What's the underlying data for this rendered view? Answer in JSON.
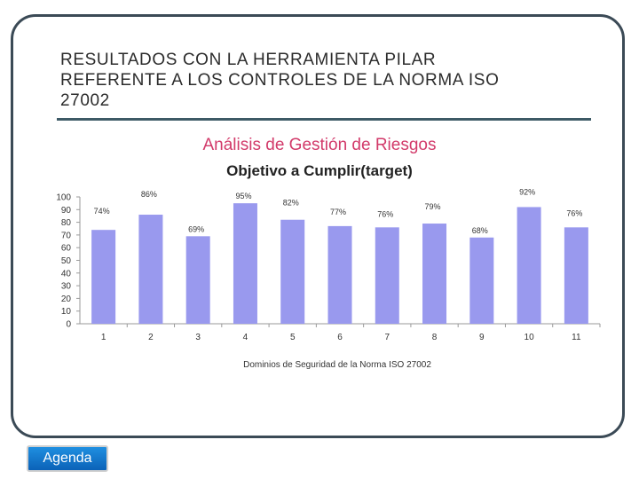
{
  "slide": {
    "title": "RESULTADOS CON LA HERRAMIENTA PILAR\nREFERENTE A LOS CONTROLES  DE LA NORMA ISO\n27002"
  },
  "chart_data": {
    "type": "bar",
    "title": "Análisis de Gestión de Riesgos",
    "subtitle": "Objetivo a Cumplir(target)",
    "xlabel": "Dominios de Seguridad de la Norma ISO 27002",
    "ylabel": "",
    "categories": [
      "1",
      "2",
      "3",
      "4",
      "5",
      "6",
      "7",
      "8",
      "9",
      "10",
      "11"
    ],
    "values": [
      74,
      86,
      69,
      95,
      82,
      77,
      76,
      79,
      68,
      92,
      76
    ],
    "data_labels": [
      "74%",
      "86%",
      "69%",
      "95%",
      "82%",
      "77%",
      "76%",
      "79%",
      "68%",
      "92%",
      "76%"
    ],
    "yticks": [
      "0",
      "10",
      "20",
      "30",
      "40",
      "50",
      "60",
      "70",
      "80",
      "90",
      "100"
    ],
    "ylim": [
      0,
      100
    ],
    "bar_color": "#9999ee",
    "grid": false
  },
  "nav": {
    "agenda_label": "Agenda"
  }
}
